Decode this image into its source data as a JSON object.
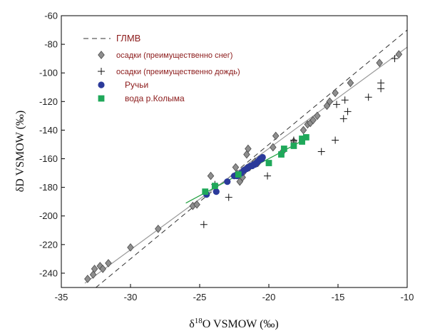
{
  "chart_data": {
    "type": "scatter",
    "xlabel_prefix": "δ",
    "xlabel_sup": "18",
    "xlabel_rest": "O VSMOW (‰)",
    "ylabel": "δD VSMOW (‰)",
    "xlim": [
      -35,
      -10
    ],
    "ylim": [
      -250,
      -60
    ],
    "x_ticks": [
      -35,
      -30,
      -25,
      -20,
      -15,
      -10
    ],
    "y_ticks": [
      -60,
      -80,
      -100,
      -120,
      -140,
      -160,
      -180,
      -200,
      -220,
      -240
    ],
    "grid": false,
    "legend_position": "top-left",
    "legend": [
      {
        "label": "ГЛМВ",
        "marker": "dashed-line"
      },
      {
        "label": "осадки (преимущественно снег)",
        "marker": "diamond"
      },
      {
        "label": "осадки (преимущественно дождь)",
        "marker": "plus"
      },
      {
        "label": "Ручьи",
        "marker": "circle"
      },
      {
        "label": "вода р.Колыма",
        "marker": "square"
      }
    ],
    "lines": [
      {
        "name": "ГЛМВ",
        "style": "dashed",
        "color": "#333333",
        "points": [
          [
            -33,
            -254
          ],
          [
            -10,
            -70
          ]
        ]
      },
      {
        "name": "snow-regression",
        "style": "solid",
        "color": "#999999",
        "points": [
          [
            -33.3,
            -247
          ],
          [
            -10,
            -82
          ]
        ]
      },
      {
        "name": "kolyma-regression",
        "style": "solid",
        "color": "#22a040",
        "points": [
          [
            -26,
            -191
          ],
          [
            -17.5,
            -147
          ]
        ]
      }
    ],
    "series": [
      {
        "name": "осадки (преимущественно снег)",
        "marker": "diamond",
        "color": "#8e8e8e",
        "points": [
          [
            -33.1,
            -244
          ],
          [
            -32.7,
            -241
          ],
          [
            -32.6,
            -237
          ],
          [
            -32.2,
            -235
          ],
          [
            -32.0,
            -237
          ],
          [
            -31.6,
            -233
          ],
          [
            -30.0,
            -222
          ],
          [
            -28.0,
            -209
          ],
          [
            -25.5,
            -193
          ],
          [
            -25.2,
            -192
          ],
          [
            -24.2,
            -172
          ],
          [
            -22.4,
            -166
          ],
          [
            -22.1,
            -176
          ],
          [
            -21.9,
            -173
          ],
          [
            -21.8,
            -169
          ],
          [
            -21.6,
            -157
          ],
          [
            -21.5,
            -153
          ],
          [
            -21.4,
            -166
          ],
          [
            -21.0,
            -162
          ],
          [
            -20.8,
            -163
          ],
          [
            -19.7,
            -152
          ],
          [
            -19.5,
            -144
          ],
          [
            -19.0,
            -155
          ],
          [
            -18.2,
            -148
          ],
          [
            -17.5,
            -140
          ],
          [
            -17.2,
            -136
          ],
          [
            -17.0,
            -135
          ],
          [
            -16.8,
            -133
          ],
          [
            -16.5,
            -130
          ],
          [
            -15.8,
            -123
          ],
          [
            -15.6,
            -120
          ],
          [
            -15.2,
            -114
          ],
          [
            -14.1,
            -107
          ],
          [
            -12.0,
            -93
          ],
          [
            -10.6,
            -87
          ]
        ]
      },
      {
        "name": "осадки (преимущественно дождь)",
        "marker": "plus",
        "color": "#111111",
        "points": [
          [
            -24.7,
            -206
          ],
          [
            -23.9,
            -178
          ],
          [
            -22.9,
            -187
          ],
          [
            -20.1,
            -172
          ],
          [
            -18.2,
            -147
          ],
          [
            -16.2,
            -155
          ],
          [
            -15.2,
            -147
          ],
          [
            -15.1,
            -122
          ],
          [
            -14.6,
            -132
          ],
          [
            -14.5,
            -119
          ],
          [
            -14.3,
            -127
          ],
          [
            -12.8,
            -117
          ],
          [
            -11.9,
            -111
          ],
          [
            -11.9,
            -107
          ],
          [
            -10.9,
            -90
          ]
        ]
      },
      {
        "name": "Ручьи",
        "marker": "circle",
        "color": "#2b3a9a",
        "points": [
          [
            -24.5,
            -185
          ],
          [
            -23.8,
            -183
          ],
          [
            -23.0,
            -176
          ],
          [
            -22.5,
            -172
          ],
          [
            -22.3,
            -172
          ],
          [
            -22.0,
            -170
          ],
          [
            -21.8,
            -168
          ],
          [
            -21.6,
            -167
          ],
          [
            -21.5,
            -166
          ],
          [
            -21.3,
            -165
          ],
          [
            -21.2,
            -165
          ],
          [
            -21.1,
            -164
          ],
          [
            -21.0,
            -164
          ],
          [
            -20.9,
            -163
          ],
          [
            -20.8,
            -162
          ],
          [
            -20.7,
            -161
          ],
          [
            -20.6,
            -160
          ],
          [
            -20.5,
            -160
          ],
          [
            -20.45,
            -159
          ]
        ]
      },
      {
        "name": "вода р.Колыма",
        "marker": "square",
        "color": "#1fa85a",
        "points": [
          [
            -24.6,
            -183
          ],
          [
            -23.9,
            -179
          ],
          [
            -22.2,
            -171
          ],
          [
            -20.0,
            -163
          ],
          [
            -19.1,
            -157
          ],
          [
            -18.9,
            -153
          ],
          [
            -18.2,
            -151
          ],
          [
            -17.6,
            -148
          ],
          [
            -17.6,
            -146
          ],
          [
            -17.3,
            -145
          ]
        ]
      }
    ]
  }
}
